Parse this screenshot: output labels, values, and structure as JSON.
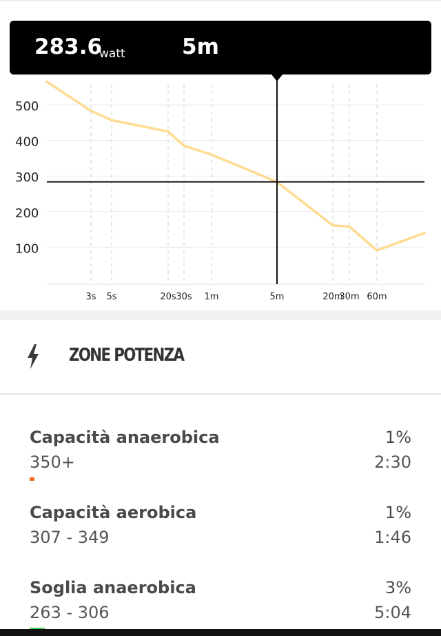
{
  "tooltip": {
    "value": "283.6",
    "unit": "watt",
    "duration": "5m"
  },
  "chart_data": {
    "type": "line",
    "title": "",
    "xlabel": "",
    "ylabel": "",
    "x_ticks": [
      "3s",
      "5s",
      "20s",
      "30s",
      "1m",
      "5m",
      "20m",
      "30m",
      "60m"
    ],
    "y_ticks": [
      100,
      200,
      300,
      400,
      500
    ],
    "ylim": [
      0,
      565
    ],
    "x_scale": "log",
    "grid": "vertical dashed at x ticks, horizontal at y ticks",
    "line_color": "#FFDB91",
    "series": [
      {
        "x": [
          "1s",
          "3s",
          "5s",
          "20s",
          "30s",
          "1m",
          "5m",
          "20m",
          "30m",
          "60m",
          "120m"
        ],
        "values": [
          565,
          483,
          457,
          425,
          385,
          360,
          283.6,
          161,
          158,
          91,
          140
        ]
      }
    ],
    "crosshair": {
      "x": "5m",
      "y": 283.6
    }
  },
  "zones": {
    "title": "ZONE POTENZA",
    "items": [
      {
        "name": "Capacità anaerobica",
        "percent": "1%",
        "range": "350+",
        "time": "2:30",
        "color": "#F26A21",
        "level": 0.01
      },
      {
        "name": "Capacità aerobica",
        "percent": "1%",
        "range": "307 - 349",
        "time": "1:46",
        "color": "#F26A21",
        "level": 0.0
      },
      {
        "name": "Soglia anaerobica",
        "percent": "3%",
        "range": "263 - 306",
        "time": "5:04",
        "color": "#3FD24C",
        "level": 0.03
      }
    ]
  }
}
